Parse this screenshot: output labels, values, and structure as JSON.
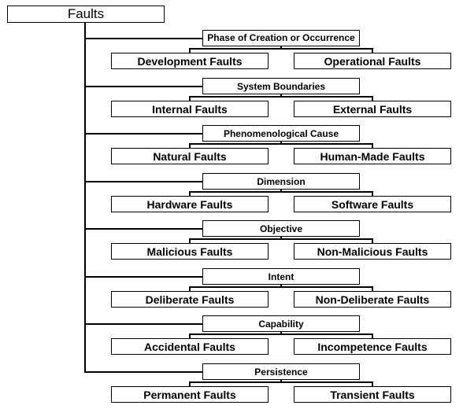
{
  "root": "Faults",
  "groups": [
    {
      "label": "Phase of Creation or Occurrence",
      "left": "Development Faults",
      "right": "Operational Faults"
    },
    {
      "label": "System Boundaries",
      "left": "Internal Faults",
      "right": "External Faults"
    },
    {
      "label": "Phenomenological Cause",
      "left": "Natural Faults",
      "right": "Human-Made Faults"
    },
    {
      "label": "Dimension",
      "left": "Hardware Faults",
      "right": "Software Faults"
    },
    {
      "label": "Objective",
      "left": "Malicious Faults",
      "right": "Non-Malicious Faults"
    },
    {
      "label": "Intent",
      "left": "Deliberate Faults",
      "right": "Non-Deliberate Faults"
    },
    {
      "label": "Capability",
      "left": "Accidental Faults",
      "right": "Incompetence Faults"
    },
    {
      "label": "Persistence",
      "left": "Permanent Faults",
      "right": "Transient Faults"
    }
  ]
}
